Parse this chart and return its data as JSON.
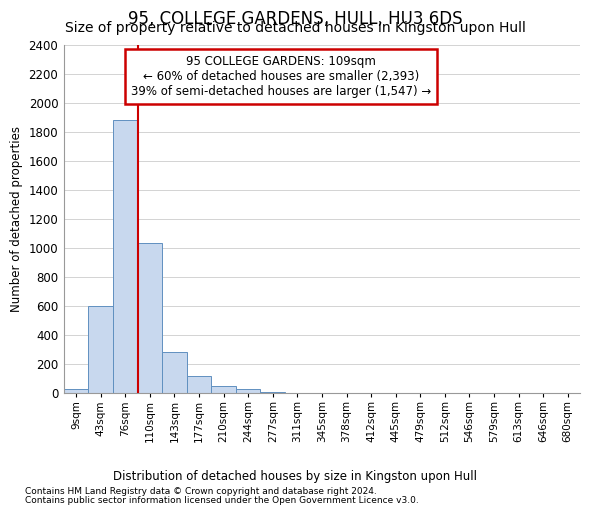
{
  "title": "95, COLLEGE GARDENS, HULL, HU3 6DS",
  "subtitle": "Size of property relative to detached houses in Kingston upon Hull",
  "xlabel_bottom": "Distribution of detached houses by size in Kingston upon Hull",
  "ylabel": "Number of detached properties",
  "footnote1": "Contains HM Land Registry data © Crown copyright and database right 2024.",
  "footnote2": "Contains public sector information licensed under the Open Government Licence v3.0.",
  "bin_labels": [
    "9sqm",
    "43sqm",
    "76sqm",
    "110sqm",
    "143sqm",
    "177sqm",
    "210sqm",
    "244sqm",
    "277sqm",
    "311sqm",
    "345sqm",
    "378sqm",
    "412sqm",
    "445sqm",
    "479sqm",
    "512sqm",
    "546sqm",
    "579sqm",
    "613sqm",
    "646sqm",
    "680sqm"
  ],
  "bar_values": [
    25,
    600,
    1880,
    1030,
    280,
    120,
    50,
    30,
    5,
    0,
    0,
    0,
    0,
    0,
    0,
    0,
    0,
    0,
    0,
    0,
    0
  ],
  "bar_color": "#c8d8ee",
  "bar_edge_color": "#6090c0",
  "vline_color": "#cc0000",
  "annotation_line1": "95 COLLEGE GARDENS: 109sqm",
  "annotation_line2": "← 60% of detached houses are smaller (2,393)",
  "annotation_line3": "39% of semi-detached houses are larger (1,547) →",
  "annotation_box_color": "#cc0000",
  "annotation_box_bg": "#ffffff",
  "ylim": [
    0,
    2400
  ],
  "yticks": [
    0,
    200,
    400,
    600,
    800,
    1000,
    1200,
    1400,
    1600,
    1800,
    2000,
    2200,
    2400
  ],
  "grid_color": "#cccccc",
  "background_color": "#ffffff",
  "title_fontsize": 12,
  "subtitle_fontsize": 10,
  "title_fontweight": "normal"
}
